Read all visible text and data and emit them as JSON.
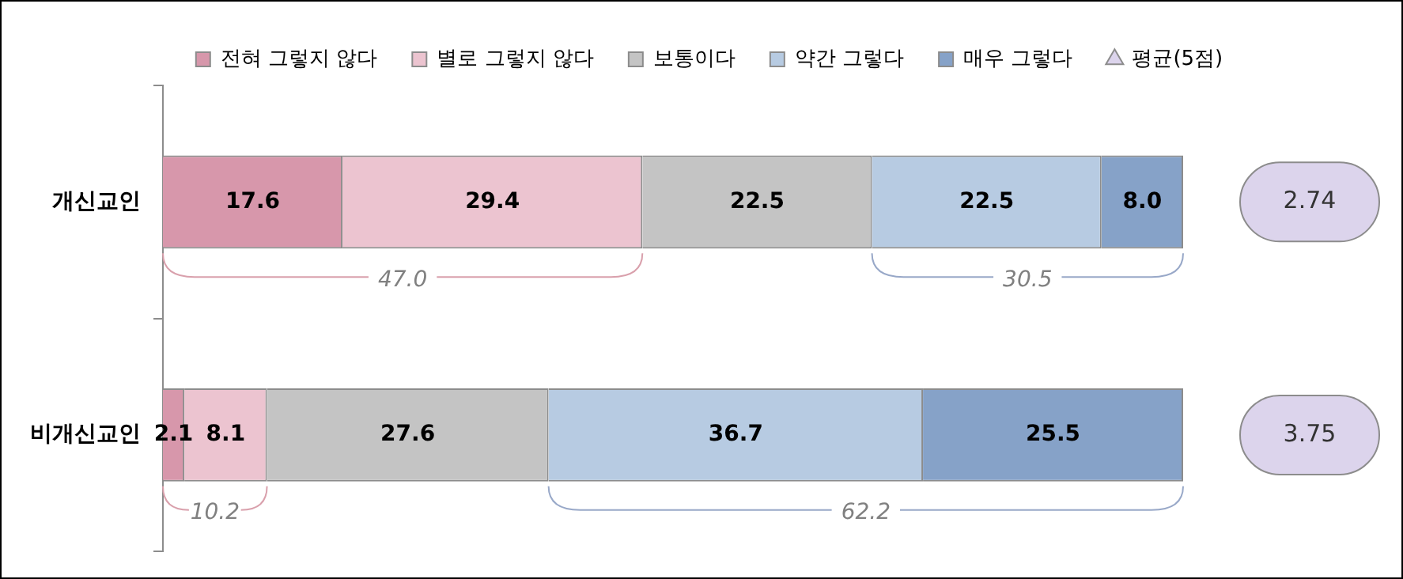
{
  "chart_data": {
    "type": "bar",
    "orientation": "horizontal",
    "stacked": true,
    "categories": [
      "개신교인",
      "비개신교인"
    ],
    "series": [
      {
        "name": "전혀 그렇지 않다",
        "color": "#d797ab",
        "values": [
          17.6,
          2.1
        ],
        "value_labels": [
          "17.6",
          "2.1"
        ]
      },
      {
        "name": "별로 그렇지 않다",
        "color": "#ecc4d0",
        "values": [
          29.4,
          8.1
        ],
        "value_labels": [
          "29.4",
          "8.1"
        ]
      },
      {
        "name": "보통이다",
        "color": "#c4c4c4",
        "values": [
          22.5,
          27.6
        ],
        "value_labels": [
          "22.5",
          "27.6"
        ]
      },
      {
        "name": "약간 그렇다",
        "color": "#b7cbe2",
        "values": [
          22.5,
          36.7
        ],
        "value_labels": [
          "22.5",
          "36.7"
        ]
      },
      {
        "name": "매우 그렇다",
        "color": "#86a2c8",
        "values": [
          8.0,
          25.5
        ],
        "value_labels": [
          "8.0",
          "25.5"
        ]
      },
      {
        "name": "평균(5점)",
        "type": "other",
        "color": "#dcd4ec",
        "values": [
          null,
          null
        ]
      }
    ],
    "xlim": [
      0,
      100
    ],
    "tick_labels": "y",
    "legend": "top",
    "grid": false,
    "annotations": [
      "47.0",
      "30.5",
      "10.2",
      "62.2",
      "2.74",
      "3.75"
    ]
  }
}
